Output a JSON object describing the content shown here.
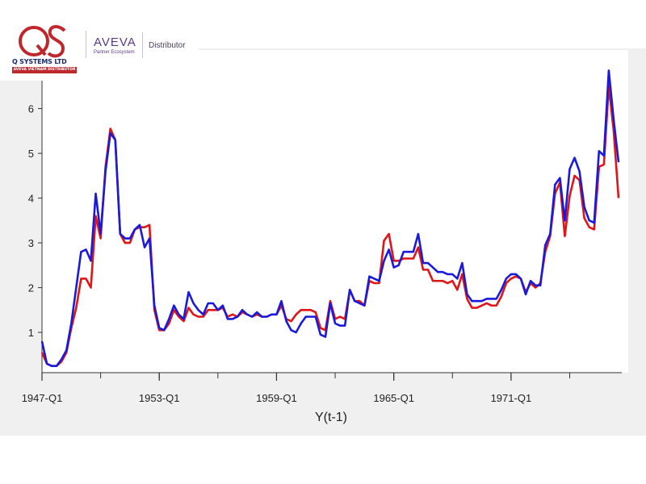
{
  "branding": {
    "qs_name": "Q SYSTEMS LTD",
    "qs_sub": "AVEVA VIETNAM DISTRIBUTOR",
    "aveva": "AVEVA",
    "aveva_sub": "Partner Ecosystem",
    "distributor": "Distributor",
    "qs_color": "#c0272d",
    "aveva_color": "#5b3a87"
  },
  "chart_data": {
    "type": "line",
    "title": "",
    "xlabel": "Y(t-1)",
    "ylabel": "",
    "x_ticks": [
      "1947-Q1",
      "1953-Q1",
      "1959-Q1",
      "1965-Q1",
      "1971-Q1"
    ],
    "x_tick_index": [
      0,
      24,
      48,
      72,
      96
    ],
    "minor_tick_index": [
      0,
      12,
      24,
      36,
      48,
      60,
      72,
      84,
      96,
      108
    ],
    "y_ticks": [
      1,
      2,
      3,
      4,
      5,
      6
    ],
    "ylim": [
      0.1,
      7.2
    ],
    "x_count": 119,
    "series": [
      {
        "name": "series-blue",
        "color": "#1a1adc",
        "values": [
          0.8,
          0.3,
          0.25,
          0.25,
          0.4,
          0.6,
          1.2,
          2.0,
          2.8,
          2.85,
          2.6,
          4.1,
          3.2,
          4.6,
          5.45,
          5.3,
          3.2,
          3.1,
          3.1,
          3.3,
          3.4,
          2.9,
          3.1,
          1.6,
          1.1,
          1.05,
          1.3,
          1.6,
          1.4,
          1.3,
          1.9,
          1.65,
          1.5,
          1.4,
          1.65,
          1.65,
          1.5,
          1.6,
          1.3,
          1.3,
          1.35,
          1.5,
          1.4,
          1.35,
          1.45,
          1.35,
          1.35,
          1.4,
          1.4,
          1.7,
          1.25,
          1.05,
          1.0,
          1.2,
          1.35,
          1.35,
          1.35,
          0.95,
          0.9,
          1.65,
          1.2,
          1.15,
          1.15,
          1.95,
          1.7,
          1.65,
          1.6,
          2.25,
          2.2,
          2.15,
          2.6,
          2.85,
          2.45,
          2.5,
          2.8,
          2.8,
          2.8,
          3.2,
          2.55,
          2.55,
          2.45,
          2.35,
          2.35,
          2.3,
          2.3,
          2.2,
          2.55,
          1.85,
          1.7,
          1.7,
          1.7,
          1.75,
          1.75,
          1.75,
          1.95,
          2.2,
          2.3,
          2.3,
          2.2,
          1.85,
          2.15,
          2.05,
          2.05,
          2.95,
          3.2,
          4.3,
          4.45,
          3.5,
          4.65,
          4.9,
          4.6,
          3.8,
          3.5,
          3.45,
          5.05,
          4.95,
          6.85,
          5.75,
          4.8
        ]
      },
      {
        "name": "series-red",
        "color": "#e01515",
        "values": [
          0.55,
          0.3,
          0.25,
          0.25,
          0.35,
          0.55,
          1.1,
          1.55,
          2.2,
          2.2,
          2.0,
          3.6,
          3.1,
          4.7,
          5.55,
          5.3,
          3.2,
          3.0,
          3.0,
          3.3,
          3.35,
          3.35,
          3.4,
          1.5,
          1.05,
          1.05,
          1.2,
          1.5,
          1.35,
          1.25,
          1.55,
          1.4,
          1.35,
          1.35,
          1.5,
          1.5,
          1.5,
          1.55,
          1.35,
          1.4,
          1.35,
          1.45,
          1.4,
          1.35,
          1.4,
          1.35,
          1.35,
          1.4,
          1.4,
          1.6,
          1.3,
          1.25,
          1.4,
          1.5,
          1.5,
          1.5,
          1.45,
          1.1,
          1.05,
          1.7,
          1.3,
          1.35,
          1.3,
          1.95,
          1.7,
          1.7,
          1.6,
          2.15,
          2.1,
          2.1,
          3.05,
          3.2,
          2.6,
          2.6,
          2.65,
          2.65,
          2.65,
          2.9,
          2.4,
          2.4,
          2.15,
          2.15,
          2.15,
          2.1,
          2.15,
          1.95,
          2.3,
          1.75,
          1.55,
          1.55,
          1.6,
          1.65,
          1.6,
          1.6,
          1.8,
          2.1,
          2.2,
          2.25,
          2.2,
          1.9,
          2.1,
          2.0,
          2.1,
          2.8,
          3.15,
          4.1,
          4.35,
          3.15,
          4.05,
          4.5,
          4.4,
          3.55,
          3.35,
          3.3,
          4.7,
          4.75,
          6.5,
          5.5,
          4.0
        ]
      }
    ]
  }
}
